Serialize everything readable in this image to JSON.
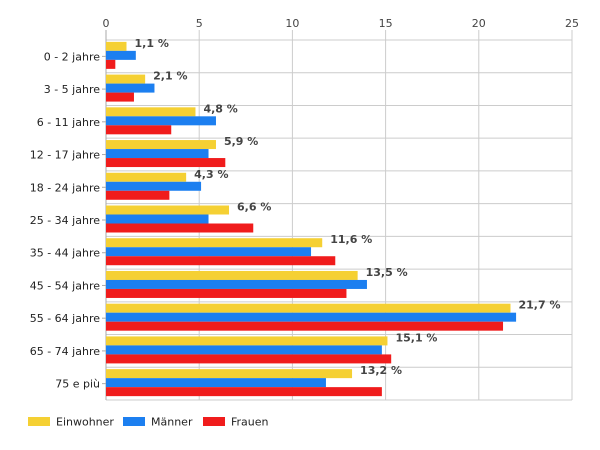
{
  "chart_data": {
    "type": "bar",
    "orientation": "horizontal",
    "categories": [
      "0 - 2 jahre",
      "3 - 5 jahre",
      "6 - 11 jahre",
      "12 - 17 jahre",
      "18 - 24 jahre",
      "25 - 34 jahre",
      "35 - 44 jahre",
      "45 - 54 jahre",
      "55 - 64 jahre",
      "65 - 74 jahre",
      "75 e più"
    ],
    "series": [
      {
        "name": "Einwohner",
        "color": "#f5d033",
        "values": [
          1.1,
          2.1,
          4.8,
          5.9,
          4.3,
          6.6,
          11.6,
          13.5,
          21.7,
          15.1,
          13.2
        ],
        "labels": [
          "1,1 %",
          "2,1 %",
          "4,8 %",
          "5,9 %",
          "4,3 %",
          "6,6 %",
          "11,6 %",
          "13,5 %",
          "21,7 %",
          "15,1 %",
          "13,2 %"
        ]
      },
      {
        "name": "Männer",
        "color": "#1c7ff0",
        "values": [
          1.6,
          2.6,
          5.9,
          5.5,
          5.1,
          5.5,
          11.0,
          14.0,
          22.0,
          14.8,
          11.8
        ]
      },
      {
        "name": "Frauen",
        "color": "#f01c1c",
        "values": [
          0.5,
          1.5,
          3.5,
          6.4,
          3.4,
          7.9,
          12.3,
          12.9,
          21.3,
          15.3,
          14.8
        ]
      }
    ],
    "xlim": [
      0,
      25
    ],
    "xticks": [
      "0",
      "5",
      "10",
      "15",
      "20",
      "25"
    ],
    "grid": true,
    "legend": "bottom-left"
  }
}
